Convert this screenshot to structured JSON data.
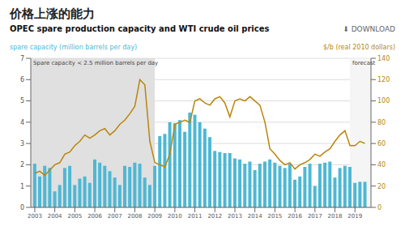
{
  "chart_data": {
    "type": "bar",
    "title": "价格上涨的能力",
    "subtitle": "OPEC spare production capacity and WTI crude oil prices",
    "ylabel": "spare capacity (million barrels per day)",
    "y2label": "$/b (real 2010 dollars)",
    "annotations": [
      "⬇ DOWNLOAD"
    ],
    "shaded_regions": [
      {
        "x0": 2002.8,
        "x1": 2009.0,
        "color": "#e0e0e0",
        "label": "Spare capacity < 2.5 million barrels per day"
      },
      {
        "x0": 2018.75,
        "x1": 2019.8,
        "color": "#f5f5f5",
        "label": "forecast"
      }
    ],
    "x": [
      2003.0,
      2003.25,
      2003.5,
      2003.75,
      2004.0,
      2004.25,
      2004.5,
      2004.75,
      2005.0,
      2005.25,
      2005.5,
      2005.75,
      2006.0,
      2006.25,
      2006.5,
      2006.75,
      2007.0,
      2007.25,
      2007.5,
      2007.75,
      2008.0,
      2008.25,
      2008.5,
      2008.75,
      2009.0,
      2009.25,
      2009.5,
      2009.75,
      2010.0,
      2010.25,
      2010.5,
      2010.75,
      2011.0,
      2011.25,
      2011.5,
      2011.75,
      2012.0,
      2012.25,
      2012.5,
      2012.75,
      2013.0,
      2013.25,
      2013.5,
      2013.75,
      2014.0,
      2014.25,
      2014.5,
      2014.75,
      2015.0,
      2015.25,
      2015.5,
      2015.75,
      2016.0,
      2016.25,
      2016.5,
      2016.75,
      2017.0,
      2017.25,
      2017.5,
      2017.75,
      2018.0,
      2018.25,
      2018.5,
      2018.75,
      2019.0,
      2019.25,
      2019.5
    ],
    "series": [
      {
        "type": "bar",
        "color": "#4db8d4",
        "values": [
          2.05,
          1.45,
          1.95,
          1.85,
          0.75,
          1.05,
          1.85,
          1.95,
          1.05,
          1.35,
          1.45,
          1.15,
          2.25,
          2.1,
          1.95,
          1.7,
          1.4,
          1.05,
          1.95,
          1.9,
          2.1,
          2.05,
          1.4,
          1.05,
          1.95,
          3.35,
          3.45,
          4.0,
          3.95,
          4.1,
          3.55,
          4.45,
          4.35,
          4.0,
          3.7,
          3.3,
          2.65,
          2.6,
          2.55,
          2.55,
          2.3,
          2.25,
          2.05,
          2.15,
          1.75,
          2.05,
          2.15,
          2.25,
          2.1,
          1.95,
          1.85,
          2.05,
          1.3,
          1.45,
          1.9,
          2.05,
          1.0,
          2.05,
          2.1,
          2.15,
          1.4,
          1.85,
          1.95,
          1.9,
          1.15,
          1.2,
          1.2
        ]
      },
      {
        "type": "line",
        "axis": "y2",
        "color": "#b8860b",
        "values": [
          32,
          34,
          30,
          35,
          40,
          42,
          50,
          52,
          58,
          62,
          68,
          65,
          68,
          72,
          74,
          68,
          72,
          78,
          82,
          88,
          95,
          120,
          115,
          62,
          42,
          40,
          38,
          50,
          78,
          80,
          82,
          80,
          100,
          102,
          98,
          96,
          102,
          104,
          98,
          85,
          100,
          102,
          100,
          104,
          100,
          96,
          80,
          55,
          50,
          44,
          40,
          42,
          36,
          40,
          42,
          45,
          50,
          48,
          52,
          55,
          62,
          68,
          72,
          58,
          58,
          62,
          60
        ]
      }
    ],
    "xlim": [
      2002.8,
      2019.8
    ],
    "xticks": [
      2003,
      2004,
      2005,
      2006,
      2007,
      2008,
      2009,
      2010,
      2011,
      2012,
      2013,
      2014,
      2015,
      2016,
      2017,
      2018,
      2019
    ],
    "ylim": [
      0,
      7
    ],
    "yticks": [
      0,
      1,
      2,
      3,
      4,
      5,
      6,
      7
    ],
    "y2lim": [
      0,
      140
    ],
    "y2ticks": [
      0,
      20,
      40,
      60,
      80,
      100,
      120,
      140
    ],
    "grid": true
  }
}
